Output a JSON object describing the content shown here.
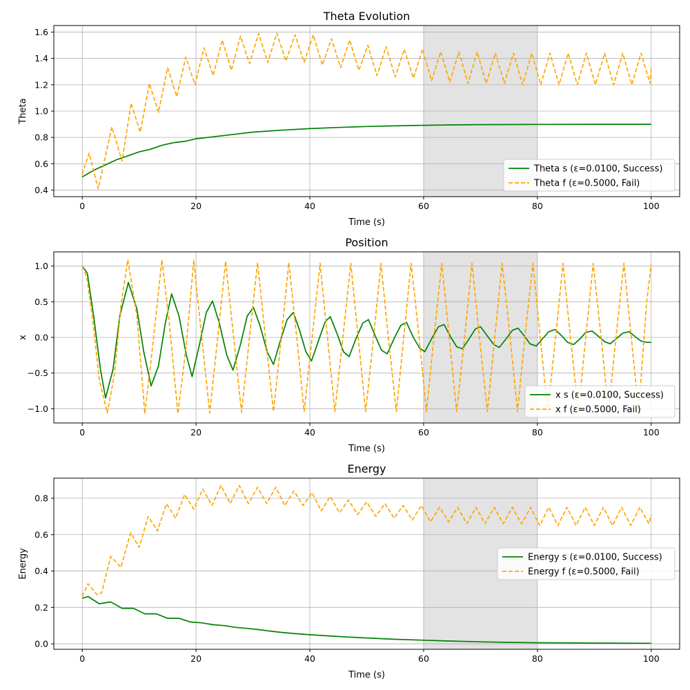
{
  "chart_data": [
    {
      "type": "line",
      "title": "Theta Evolution",
      "xlabel": "Time (s)",
      "ylabel": "Theta",
      "xlim": [
        -5,
        105
      ],
      "ylim": [
        0.35,
        1.65
      ],
      "xticks": [
        0,
        20,
        40,
        60,
        80,
        100
      ],
      "yticks": [
        0.4,
        0.6,
        0.8,
        1.0,
        1.2,
        1.4,
        1.6
      ],
      "ytick_format": 1,
      "grid": true,
      "shaded_region": [
        60,
        80
      ],
      "legend": {
        "placement": "lower-right"
      },
      "series": [
        {
          "name": "Theta s (ε=0.0100, Success)",
          "color": "#008000",
          "dash": "solid",
          "x": [
            0,
            2,
            4,
            6,
            8,
            10,
            12,
            14,
            16,
            18,
            20,
            25,
            30,
            35,
            40,
            45,
            50,
            55,
            60,
            65,
            70,
            75,
            80,
            90,
            100
          ],
          "y": [
            0.5,
            0.55,
            0.59,
            0.63,
            0.66,
            0.69,
            0.71,
            0.74,
            0.76,
            0.77,
            0.79,
            0.815,
            0.84,
            0.855,
            0.867,
            0.876,
            0.883,
            0.888,
            0.892,
            0.895,
            0.897,
            0.898,
            0.899,
            0.9,
            0.9
          ]
        },
        {
          "name": "Theta f (ε=0.5000, Fail)",
          "color": "#ffa500",
          "dash": "dashed",
          "x": [
            0,
            1.2,
            2.8,
            5.2,
            7.0,
            8.6,
            10.2,
            11.8,
            13.4,
            15.0,
            16.6,
            18.2,
            19.8,
            21.4,
            23.0,
            24.6,
            26.2,
            27.8,
            29.4,
            31.0,
            32.6,
            34.2,
            35.8,
            37.4,
            39.0,
            40.6,
            42.2,
            43.8,
            45.4,
            47.0,
            48.6,
            50.2,
            51.8,
            53.4,
            55.0,
            56.6,
            58.2,
            59.8,
            61.4,
            63.0,
            64.6,
            66.2,
            67.8,
            69.4,
            71.0,
            72.6,
            74.2,
            75.8,
            77.4,
            79.0,
            80.6,
            82.2,
            83.8,
            85.4,
            87.0,
            88.6,
            90.2,
            91.8,
            93.4,
            95.0,
            96.6,
            98.2,
            99.8,
            100
          ],
          "y": [
            0.52,
            0.68,
            0.41,
            0.88,
            0.62,
            1.06,
            0.84,
            1.21,
            0.99,
            1.33,
            1.11,
            1.41,
            1.2,
            1.48,
            1.27,
            1.54,
            1.31,
            1.57,
            1.36,
            1.59,
            1.37,
            1.59,
            1.38,
            1.58,
            1.37,
            1.58,
            1.35,
            1.55,
            1.33,
            1.54,
            1.31,
            1.5,
            1.27,
            1.49,
            1.26,
            1.47,
            1.25,
            1.47,
            1.23,
            1.45,
            1.22,
            1.45,
            1.21,
            1.45,
            1.21,
            1.44,
            1.21,
            1.44,
            1.2,
            1.44,
            1.2,
            1.44,
            1.2,
            1.44,
            1.2,
            1.44,
            1.2,
            1.44,
            1.2,
            1.44,
            1.2,
            1.44,
            1.21,
            1.33
          ]
        }
      ]
    },
    {
      "type": "line",
      "title": "Position",
      "xlabel": "Time (s)",
      "ylabel": "x",
      "xlim": [
        -5,
        105
      ],
      "ylim": [
        -1.2,
        1.2
      ],
      "xticks": [
        0,
        20,
        40,
        60,
        80,
        100
      ],
      "yticks": [
        -1.0,
        -0.5,
        0.0,
        0.5,
        1.0
      ],
      "ytick_format": 1,
      "grid": true,
      "shaded_region": [
        60,
        80
      ],
      "legend": {
        "placement": "lower-right"
      },
      "series": [
        {
          "name": "x s (ε=0.0100, Success)",
          "color": "#008000",
          "dash": "solid",
          "x": [
            0,
            0.9,
            2.0,
            3.2,
            4.1,
            5.4,
            6.6,
            8.1,
            9.6,
            10.8,
            12.1,
            13.4,
            14.6,
            15.7,
            17.0,
            18.3,
            19.3,
            20.6,
            21.8,
            22.9,
            24.1,
            25.4,
            26.5,
            27.8,
            29.0,
            30.1,
            31.3,
            32.5,
            33.6,
            34.8,
            36.0,
            37.1,
            38.2,
            39.3,
            40.3,
            41.5,
            42.7,
            43.6,
            44.8,
            45.9,
            46.9,
            48.1,
            49.3,
            50.3,
            51.5,
            52.6,
            53.6,
            54.9,
            56.0,
            57.0,
            58.2,
            59.3,
            60.2,
            61.4,
            62.6,
            63.6,
            64.8,
            65.8,
            66.8,
            68.0,
            69.1,
            70.0,
            71.2,
            72.3,
            73.3,
            74.5,
            75.6,
            76.6,
            77.7,
            78.7,
            79.8,
            81.0,
            82.0,
            83.1,
            84.3,
            85.3,
            86.4,
            87.6,
            88.5,
            89.6,
            90.8,
            91.8,
            92.8,
            94.0,
            95.0,
            96.1,
            97.2,
            98.2,
            99.2,
            100
          ],
          "y": [
            1.0,
            0.9,
            0.3,
            -0.45,
            -0.85,
            -0.45,
            0.3,
            0.77,
            0.4,
            -0.2,
            -0.68,
            -0.4,
            0.2,
            0.61,
            0.3,
            -0.25,
            -0.55,
            -0.1,
            0.35,
            0.51,
            0.2,
            -0.25,
            -0.46,
            -0.1,
            0.3,
            0.42,
            0.15,
            -0.2,
            -0.38,
            -0.05,
            0.25,
            0.35,
            0.1,
            -0.2,
            -0.33,
            -0.05,
            0.22,
            0.29,
            0.05,
            -0.2,
            -0.27,
            -0.02,
            0.2,
            0.25,
            0.02,
            -0.18,
            -0.23,
            0.0,
            0.17,
            0.21,
            0.0,
            -0.15,
            -0.2,
            -0.02,
            0.15,
            0.18,
            0.0,
            -0.13,
            -0.16,
            -0.02,
            0.12,
            0.15,
            0.02,
            -0.1,
            -0.14,
            -0.02,
            0.1,
            0.13,
            0.02,
            -0.09,
            -0.12,
            -0.01,
            0.08,
            0.11,
            0.02,
            -0.07,
            -0.1,
            -0.01,
            0.07,
            0.09,
            0.01,
            -0.06,
            -0.09,
            -0.01,
            0.06,
            0.08,
            0.01,
            -0.05,
            -0.07,
            -0.07
          ]
        },
        {
          "name": "x f (ε=0.5000, Fail)",
          "color": "#ffa500",
          "dash": "dashed",
          "x": [
            0,
            0.8,
            1.9,
            3.0,
            4.4,
            5.7,
            6.8,
            8.0,
            9.6,
            11.0,
            12.4,
            14.0,
            15.3,
            16.8,
            18.3,
            19.6,
            21.0,
            22.4,
            23.8,
            25.2,
            26.6,
            28.0,
            29.4,
            30.8,
            32.2,
            33.6,
            35.0,
            36.3,
            37.7,
            39.0,
            40.4,
            41.8,
            43.1,
            44.4,
            45.8,
            47.2,
            48.5,
            49.8,
            51.2,
            52.5,
            53.8,
            55.2,
            56.5,
            57.8,
            59.2,
            60.5,
            61.8,
            63.2,
            64.5,
            65.8,
            67.2,
            68.5,
            69.8,
            71.2,
            72.5,
            73.8,
            75.2,
            76.5,
            77.8,
            79.2,
            80.5,
            81.8,
            83.2,
            84.5,
            85.8,
            87.2,
            88.5,
            89.8,
            91.2,
            92.5,
            93.8,
            95.2,
            96.5,
            97.8,
            99.2,
            100
          ],
          "y": [
            1.0,
            0.85,
            0.2,
            -0.6,
            -1.06,
            -0.5,
            0.45,
            1.09,
            0.3,
            -1.07,
            -0.1,
            1.09,
            0.2,
            -1.07,
            -0.1,
            1.08,
            0.0,
            -1.06,
            0.0,
            1.07,
            0.0,
            -1.05,
            0.0,
            1.05,
            0.0,
            -1.04,
            0.0,
            1.05,
            0.0,
            -1.04,
            0.0,
            1.04,
            0.0,
            -1.04,
            0.0,
            1.04,
            0.0,
            -1.04,
            0.0,
            1.04,
            0.0,
            -1.04,
            0.0,
            1.04,
            0.0,
            -1.04,
            0.0,
            1.04,
            0.0,
            -1.04,
            0.0,
            1.04,
            0.0,
            -1.04,
            0.0,
            1.04,
            0.0,
            -1.04,
            0.0,
            1.04,
            0.0,
            -1.04,
            0.0,
            1.04,
            0.0,
            -1.04,
            0.0,
            1.04,
            0.0,
            -1.04,
            0.0,
            1.04,
            0.0,
            -1.04,
            0.5,
            1.03
          ]
        }
      ]
    },
    {
      "type": "line",
      "title": "Energy",
      "xlabel": "Time (s)",
      "ylabel": "Energy",
      "xlim": [
        -5,
        105
      ],
      "ylim": [
        -0.03,
        0.91
      ],
      "xticks": [
        0,
        20,
        40,
        60,
        80,
        100
      ],
      "yticks": [
        0.0,
        0.2,
        0.4,
        0.6,
        0.8
      ],
      "ytick_format": 1,
      "grid": true,
      "shaded_region": [
        60,
        80
      ],
      "legend": {
        "placement": "center-right"
      },
      "series": [
        {
          "name": "Energy s (ε=0.0100, Success)",
          "color": "#008000",
          "dash": "solid",
          "x": [
            0,
            1,
            3,
            5,
            7,
            9,
            11,
            13,
            15,
            17,
            19,
            21,
            23,
            25,
            27,
            29,
            31,
            33,
            35,
            37,
            40,
            45,
            50,
            55,
            60,
            65,
            70,
            75,
            80,
            90,
            100
          ],
          "y": [
            0.25,
            0.26,
            0.22,
            0.23,
            0.195,
            0.195,
            0.165,
            0.165,
            0.14,
            0.14,
            0.12,
            0.115,
            0.105,
            0.1,
            0.09,
            0.085,
            0.078,
            0.07,
            0.063,
            0.057,
            0.05,
            0.04,
            0.032,
            0.025,
            0.02,
            0.015,
            0.011,
            0.008,
            0.006,
            0.004,
            0.003
          ]
        },
        {
          "name": "Energy f (ε=0.5000, Fail)",
          "color": "#ffa500",
          "dash": "dashed",
          "x": [
            0,
            1.0,
            2.6,
            3.4,
            5.0,
            6.8,
            8.5,
            10.0,
            11.6,
            13.2,
            14.8,
            16.4,
            18.0,
            19.6,
            21.2,
            22.8,
            24.4,
            26.0,
            27.6,
            29.2,
            30.8,
            32.4,
            34.0,
            35.6,
            37.2,
            38.8,
            40.4,
            42.0,
            43.6,
            45.2,
            46.8,
            48.4,
            50.0,
            51.6,
            53.2,
            54.8,
            56.4,
            58.0,
            59.6,
            61.2,
            62.8,
            64.4,
            66.0,
            67.6,
            69.2,
            70.8,
            72.4,
            74.0,
            75.6,
            77.2,
            78.8,
            80.4,
            82.0,
            83.6,
            85.2,
            86.8,
            88.4,
            90.0,
            91.6,
            93.2,
            94.8,
            96.4,
            98.0,
            99.6,
            100
          ],
          "y": [
            0.26,
            0.33,
            0.27,
            0.28,
            0.48,
            0.42,
            0.61,
            0.53,
            0.7,
            0.62,
            0.77,
            0.69,
            0.82,
            0.74,
            0.85,
            0.76,
            0.87,
            0.77,
            0.87,
            0.77,
            0.86,
            0.77,
            0.86,
            0.76,
            0.84,
            0.76,
            0.83,
            0.73,
            0.81,
            0.72,
            0.79,
            0.71,
            0.78,
            0.7,
            0.77,
            0.69,
            0.76,
            0.68,
            0.76,
            0.67,
            0.75,
            0.67,
            0.75,
            0.66,
            0.75,
            0.66,
            0.75,
            0.66,
            0.75,
            0.66,
            0.75,
            0.65,
            0.75,
            0.65,
            0.75,
            0.65,
            0.75,
            0.65,
            0.75,
            0.65,
            0.75,
            0.65,
            0.75,
            0.66,
            0.71
          ]
        }
      ]
    }
  ]
}
